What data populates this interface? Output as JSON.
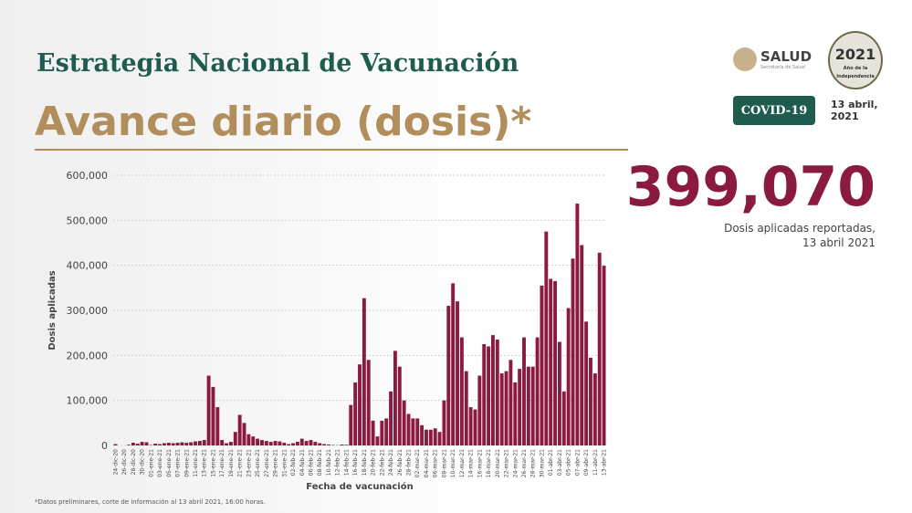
{
  "header": {
    "title": "Estrategia Nacional de Vacunación",
    "subtitle": "Avance diario (dosis)*",
    "logo_name": "SALUD",
    "logo_subtext": "Secretaría de Salud",
    "seal_year": "2021",
    "seal_text": "Año de la Independencia",
    "badge": "COVID-19",
    "date": "13 abril, 2021"
  },
  "highlight": {
    "value": "399,070",
    "caption": [
      "Dosis aplicadas reportadas,",
      "13 abril 2021"
    ]
  },
  "chart_data": {
    "type": "bar",
    "ylabel": "Dosis aplicadas",
    "xlabel": "Fecha de vacunación",
    "color": "#8b1a3f",
    "grid": true,
    "ylim": [
      0,
      600000
    ],
    "yticks": [
      {
        "value": 0,
        "label": "0"
      },
      {
        "value": 100000,
        "label": "100,000"
      },
      {
        "value": 200000,
        "label": "200,000"
      },
      {
        "value": 300000,
        "label": "300,000"
      },
      {
        "value": 400000,
        "label": "400,000"
      },
      {
        "value": 500000,
        "label": "500,000"
      },
      {
        "value": 600000,
        "label": "600,000"
      }
    ],
    "categories": [
      "24-dic-20",
      null,
      "26-dic-20",
      null,
      "28-dic-20",
      null,
      "30-dic-20",
      null,
      "01-ene-21",
      null,
      "03-ene-21",
      null,
      "05-ene-21",
      null,
      "07-ene-21",
      null,
      "09-ene-21",
      null,
      "11-ene-21",
      null,
      "13-ene-21",
      null,
      "15-ene-21",
      null,
      "17-ene-21",
      null,
      "19-ene-21",
      null,
      "21-ene-21",
      null,
      "23-ene-21",
      null,
      "25-ene-21",
      null,
      "27-ene-21",
      null,
      "29-ene-21",
      null,
      "31-ene-21",
      null,
      "02-feb-21",
      null,
      "04-feb-21",
      null,
      "06-feb-21",
      null,
      "08-feb-21",
      null,
      "10-feb-21",
      null,
      "12-feb-21",
      null,
      "14-feb-21",
      null,
      "16-feb-21",
      null,
      "18-feb-21",
      null,
      "20-feb-21",
      null,
      "22-feb-21",
      null,
      "24-feb-21",
      null,
      "26-feb-21",
      null,
      "28-feb-21",
      null,
      "02-mar-21",
      null,
      "04-mar-21",
      null,
      "06-mar-21",
      null,
      "08-mar-21",
      null,
      "10-mar-21",
      null,
      "12-mar-21",
      null,
      "14-mar-21",
      null,
      "16-mar-21",
      null,
      "18-mar-21",
      null,
      "20-mar-21",
      null,
      "22-mar-21",
      null,
      "24-mar-21",
      null,
      "26-mar-21",
      null,
      "28-mar-21",
      null,
      "30-mar-21",
      null,
      "01-abr-21",
      null,
      "03-abr-21",
      null,
      "05-abr-21",
      null,
      "07-abr-21",
      null,
      "09-abr-21",
      null,
      "11-abr-21",
      null,
      "13-abr-21"
    ],
    "values": [
      2924,
      0,
      0,
      1500,
      6000,
      4000,
      8000,
      7000,
      1000,
      4000,
      3000,
      5000,
      6000,
      5000,
      6000,
      7000,
      6000,
      7000,
      9000,
      10000,
      12000,
      155000,
      130000,
      85000,
      12000,
      5000,
      8000,
      30000,
      68000,
      50000,
      25000,
      20000,
      15000,
      12000,
      10000,
      8000,
      10000,
      9000,
      6000,
      3000,
      5000,
      8000,
      15000,
      10000,
      12000,
      8000,
      5000,
      3000,
      2000,
      1000,
      500,
      2000,
      1500,
      90000,
      140000,
      180000,
      327000,
      190000,
      55000,
      20000,
      55000,
      60000,
      120000,
      210000,
      175000,
      100000,
      70000,
      60000,
      60000,
      45000,
      35000,
      35000,
      38000,
      30000,
      100000,
      310000,
      360000,
      320000,
      240000,
      165000,
      85000,
      80000,
      155000,
      225000,
      220000,
      245000,
      235000,
      160000,
      165000,
      190000,
      140000,
      170000,
      240000,
      175000,
      175000,
      240000,
      355000,
      475000,
      370000,
      365000,
      230000,
      120000,
      305000,
      415000,
      537000,
      445000,
      275000,
      195000,
      160000,
      428000,
      399070
    ]
  },
  "footnote": "*Datos preliminares, corte de información al 13 abril 2021, 16:00 horas."
}
